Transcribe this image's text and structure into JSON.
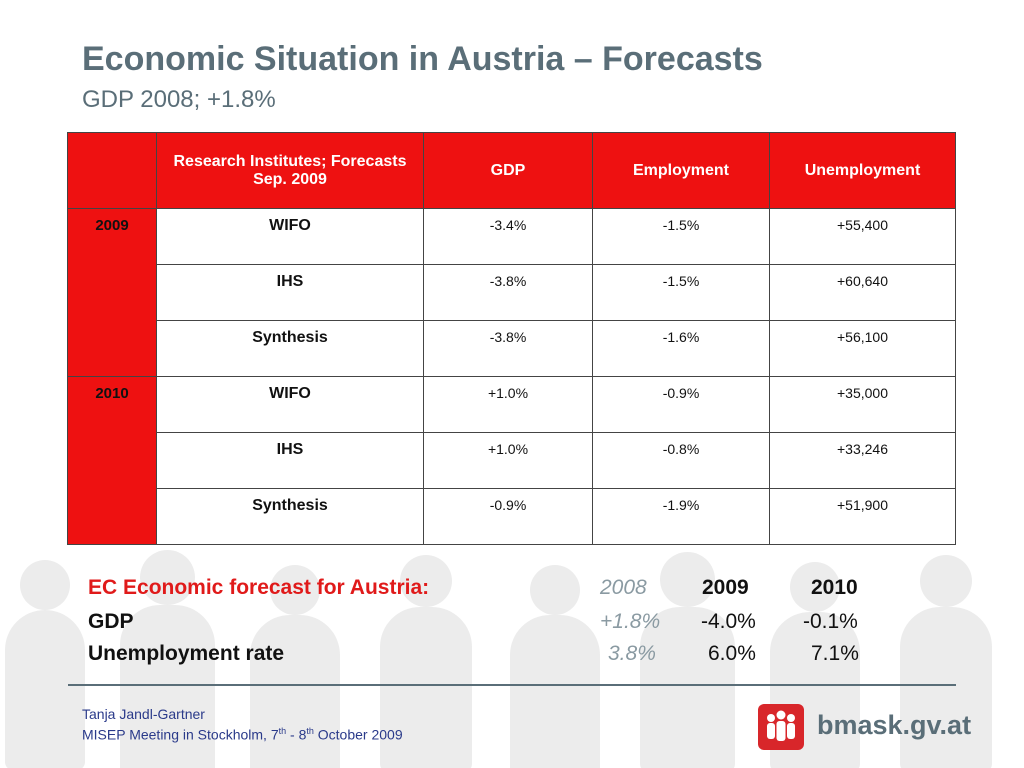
{
  "slide": {
    "title": "Economic Situation in Austria – Forecasts",
    "subtitle": "GDP 2008; +1.8%"
  },
  "table": {
    "header": {
      "col1": "Research Institutes; Forecasts Sep. 2009",
      "col2": "GDP",
      "col3": "Employment",
      "col4": "Unemployment"
    },
    "groups": [
      {
        "year": "2009",
        "rows": [
          {
            "institute": "WIFO",
            "gdp": "-3.4%",
            "employment": "-1.5%",
            "unemployment": "+55,400"
          },
          {
            "institute": "IHS",
            "gdp": "-3.8%",
            "employment": "-1.5%",
            "unemployment": "+60,640"
          },
          {
            "institute": "Synthesis",
            "gdp": "-3.8%",
            "employment": "-1.6%",
            "unemployment": "+56,100"
          }
        ]
      },
      {
        "year": "2010",
        "rows": [
          {
            "institute": "WIFO",
            "gdp": "+1.0%",
            "employment": "-0.9%",
            "unemployment": "+35,000"
          },
          {
            "institute": "IHS",
            "gdp": "+1.0%",
            "employment": "-0.8%",
            "unemployment": "+33,246"
          },
          {
            "institute": "Synthesis",
            "gdp": "-0.9%",
            "employment": "-1.9%",
            "unemployment": "+51,900"
          }
        ]
      }
    ]
  },
  "ec_forecast": {
    "heading": "EC Economic forecast for Austria:",
    "years": [
      "2008",
      "2009",
      "2010"
    ],
    "gdp_label": "GDP",
    "gdp_values": [
      "+1.8%",
      "-4.0%",
      "-0.1%"
    ],
    "unemp_label": "Unemployment rate",
    "unemp_values": [
      "3.8%",
      "6.0%",
      "7.1%"
    ]
  },
  "footer": {
    "author": "Tanja Jandl-Gartner",
    "meeting_a": "MISEP Meeting in Stockholm, 7",
    "sup_a": "th",
    "meeting_b": " - 8",
    "sup_b": "th",
    "meeting_c": " October 2009",
    "logo_text": "bmask.gv.at"
  },
  "colors": {
    "accent_red": "#ee1111",
    "title_gray": "#5a6e78",
    "footer_blue": "#2a3a8a"
  }
}
